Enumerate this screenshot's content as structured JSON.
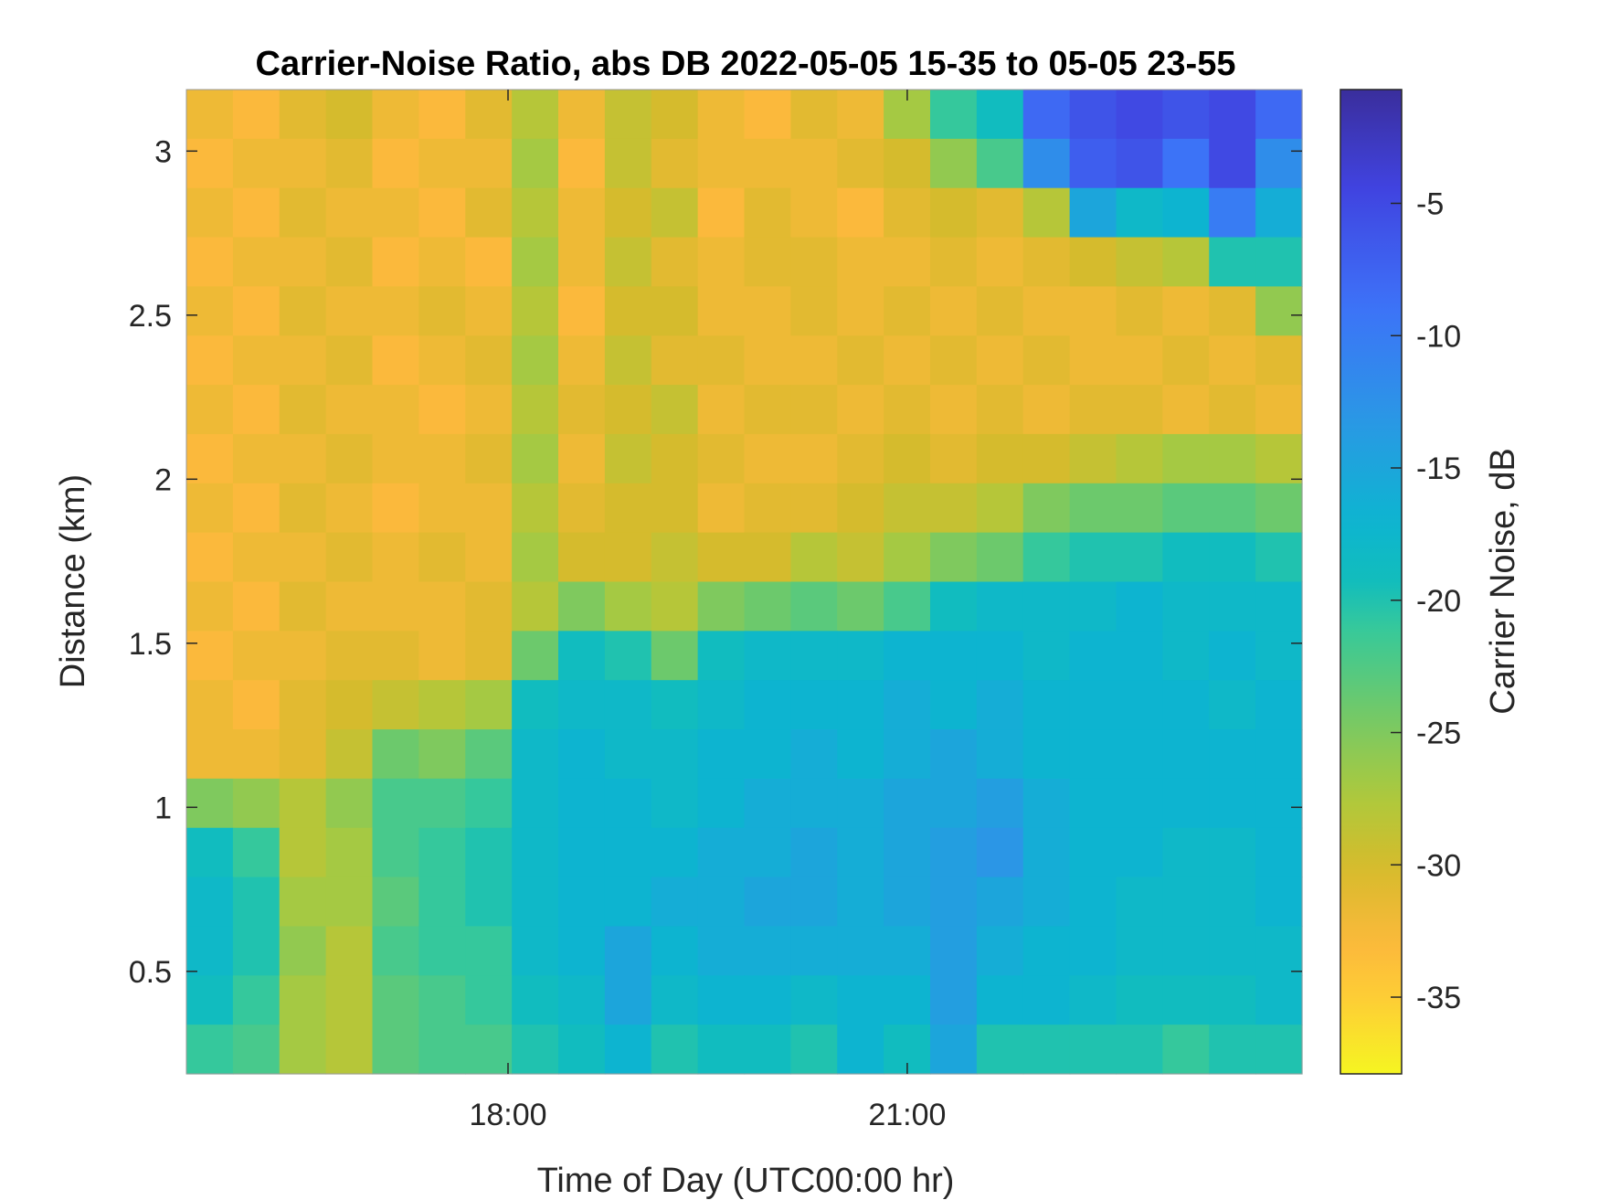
{
  "chart_data": {
    "type": "heatmap",
    "title": "Carrier-Noise Ratio, abs DB 2022-05-05 15-35 to 05-05 23-55",
    "xlabel": "Time of Day (UTC00:00 hr)",
    "ylabel": "Distance (km)",
    "colorbar_label": "Carrier Noise, dB",
    "colormap": "parula (reversed: yellow = low, dark blue = high)",
    "xlim_hours": [
      15.583,
      23.967
    ],
    "ylim_km": [
      0.1875,
      3.1875
    ],
    "clim_db": [
      -37.9,
      -0.7
    ],
    "x_ticks": [
      {
        "value": 18,
        "label": "18:00"
      },
      {
        "value": 21,
        "label": "21:00"
      }
    ],
    "y_ticks": [
      {
        "value": 0.5,
        "label": "0.5"
      },
      {
        "value": 1,
        "label": "1"
      },
      {
        "value": 1.5,
        "label": "1.5"
      },
      {
        "value": 2,
        "label": "2"
      },
      {
        "value": 2.5,
        "label": "2.5"
      },
      {
        "value": 3,
        "label": "3"
      }
    ],
    "colorbar_ticks": [
      {
        "value": -5,
        "label": "-5"
      },
      {
        "value": -10,
        "label": "-10"
      },
      {
        "value": -15,
        "label": "-15"
      },
      {
        "value": -20,
        "label": "-20"
      },
      {
        "value": -25,
        "label": "-25"
      },
      {
        "value": -30,
        "label": "-30"
      },
      {
        "value": -35,
        "label": "-35"
      }
    ],
    "grid": false,
    "note": "values approximate, coarse-grid resampling; rows ordered top (far) to bottom (near)",
    "distance_row_centers_km": [
      3.11,
      2.96,
      2.81,
      2.66,
      2.51,
      2.36,
      2.21,
      2.06,
      1.91,
      1.76,
      1.61,
      1.46,
      1.31,
      1.16,
      1.01,
      0.86,
      0.71,
      0.56,
      0.41,
      0.26
    ],
    "values_db": [
      [
        -32,
        -33,
        -31,
        -30,
        -32,
        -33,
        -31,
        -28,
        -32,
        -29,
        -30,
        -32,
        -33,
        -31,
        -32,
        -27,
        -21,
        -19,
        -8,
        -6,
        -5,
        -6,
        -5,
        -8
      ],
      [
        -33,
        -32,
        -32,
        -31,
        -33,
        -32,
        -32,
        -27,
        -33,
        -29,
        -31,
        -32,
        -32,
        -32,
        -31,
        -30,
        -26,
        -22,
        -12,
        -7,
        -6,
        -9,
        -5,
        -12
      ],
      [
        -32,
        -33,
        -31,
        -32,
        -32,
        -33,
        -31,
        -28,
        -32,
        -30,
        -29,
        -33,
        -31,
        -32,
        -33,
        -31,
        -30,
        -31,
        -28,
        -15,
        -18,
        -17,
        -10,
        -16
      ],
      [
        -33,
        -32,
        -32,
        -31,
        -33,
        -32,
        -33,
        -27,
        -32,
        -29,
        -31,
        -32,
        -31,
        -31,
        -32,
        -32,
        -31,
        -32,
        -31,
        -30,
        -29,
        -28,
        -20,
        -20
      ],
      [
        -32,
        -33,
        -31,
        -32,
        -32,
        -31,
        -32,
        -28,
        -33,
        -30,
        -30,
        -32,
        -32,
        -31,
        -32,
        -31,
        -32,
        -31,
        -32,
        -32,
        -31,
        -32,
        -31,
        -26
      ],
      [
        -33,
        -32,
        -32,
        -31,
        -33,
        -32,
        -31,
        -27,
        -32,
        -29,
        -31,
        -31,
        -32,
        -32,
        -31,
        -32,
        -31,
        -32,
        -31,
        -32,
        -32,
        -31,
        -32,
        -31
      ],
      [
        -32,
        -33,
        -31,
        -32,
        -32,
        -33,
        -32,
        -28,
        -31,
        -30,
        -29,
        -32,
        -31,
        -31,
        -32,
        -31,
        -32,
        -31,
        -32,
        -31,
        -31,
        -32,
        -31,
        -32
      ],
      [
        -33,
        -32,
        -32,
        -31,
        -32,
        -32,
        -31,
        -27,
        -32,
        -29,
        -30,
        -31,
        -32,
        -32,
        -31,
        -30,
        -31,
        -30,
        -30,
        -29,
        -28,
        -27,
        -27,
        -28
      ],
      [
        -32,
        -33,
        -31,
        -32,
        -33,
        -32,
        -32,
        -28,
        -31,
        -30,
        -30,
        -32,
        -31,
        -31,
        -30,
        -29,
        -29,
        -28,
        -25,
        -24,
        -24,
        -23,
        -23,
        -24
      ],
      [
        -33,
        -32,
        -32,
        -31,
        -32,
        -31,
        -32,
        -27,
        -30,
        -30,
        -29,
        -30,
        -30,
        -28,
        -29,
        -27,
        -25,
        -24,
        -21,
        -20,
        -20,
        -19,
        -19,
        -20
      ],
      [
        -32,
        -33,
        -31,
        -32,
        -32,
        -32,
        -31,
        -28,
        -25,
        -27,
        -28,
        -25,
        -24,
        -23,
        -24,
        -22,
        -19,
        -18,
        -18,
        -18,
        -17,
        -18,
        -18,
        -18
      ],
      [
        -33,
        -32,
        -32,
        -31,
        -31,
        -32,
        -31,
        -24,
        -19,
        -20,
        -24,
        -19,
        -18,
        -18,
        -18,
        -17,
        -17,
        -17,
        -18,
        -17,
        -17,
        -18,
        -17,
        -18
      ],
      [
        -32,
        -33,
        -31,
        -30,
        -29,
        -28,
        -27,
        -19,
        -18,
        -18,
        -19,
        -18,
        -17,
        -17,
        -17,
        -16,
        -17,
        -16,
        -17,
        -17,
        -17,
        -17,
        -18,
        -17
      ],
      [
        -32,
        -32,
        -31,
        -29,
        -24,
        -25,
        -23,
        -18,
        -17,
        -18,
        -18,
        -17,
        -17,
        -16,
        -17,
        -16,
        -15,
        -16,
        -17,
        -17,
        -17,
        -17,
        -17,
        -17
      ],
      [
        -25,
        -26,
        -28,
        -26,
        -22,
        -22,
        -21,
        -18,
        -17,
        -17,
        -18,
        -17,
        -16,
        -16,
        -16,
        -15,
        -15,
        -14,
        -16,
        -17,
        -17,
        -17,
        -17,
        -17
      ],
      [
        -19,
        -21,
        -28,
        -27,
        -22,
        -21,
        -20,
        -18,
        -17,
        -17,
        -17,
        -16,
        -16,
        -15,
        -16,
        -15,
        -14,
        -13,
        -16,
        -17,
        -17,
        -18,
        -18,
        -17
      ],
      [
        -18,
        -20,
        -27,
        -27,
        -23,
        -21,
        -20,
        -18,
        -17,
        -17,
        -16,
        -16,
        -15,
        -15,
        -16,
        -15,
        -14,
        -15,
        -16,
        -17,
        -18,
        -18,
        -18,
        -17
      ],
      [
        -18,
        -20,
        -26,
        -28,
        -22,
        -21,
        -21,
        -18,
        -17,
        -15,
        -17,
        -16,
        -16,
        -16,
        -16,
        -16,
        -14,
        -16,
        -17,
        -17,
        -18,
        -18,
        -18,
        -18
      ],
      [
        -19,
        -21,
        -27,
        -28,
        -23,
        -22,
        -21,
        -19,
        -18,
        -15,
        -18,
        -17,
        -17,
        -18,
        -17,
        -17,
        -14,
        -17,
        -17,
        -18,
        -19,
        -19,
        -19,
        -18
      ],
      [
        -21,
        -22,
        -27,
        -28,
        -23,
        -22,
        -22,
        -20,
        -19,
        -17,
        -20,
        -19,
        -19,
        -20,
        -17,
        -19,
        -15,
        -20,
        -20,
        -20,
        -20,
        -21,
        -20,
        -20
      ]
    ]
  },
  "colors": {
    "axis": "#262626",
    "stops": [
      [
        0.0,
        "#3a2e9c"
      ],
      [
        0.1,
        "#4043e0"
      ],
      [
        0.22,
        "#3d72f8"
      ],
      [
        0.33,
        "#2b96e6"
      ],
      [
        0.44,
        "#0db5d0"
      ],
      [
        0.5,
        "#12bdbc"
      ],
      [
        0.55,
        "#38c999"
      ],
      [
        0.63,
        "#6fc96a"
      ],
      [
        0.72,
        "#aec93c"
      ],
      [
        0.79,
        "#d6bb2c"
      ],
      [
        0.87,
        "#fcb93c"
      ],
      [
        0.93,
        "#fdd034"
      ],
      [
        1.0,
        "#f5f521"
      ]
    ]
  }
}
